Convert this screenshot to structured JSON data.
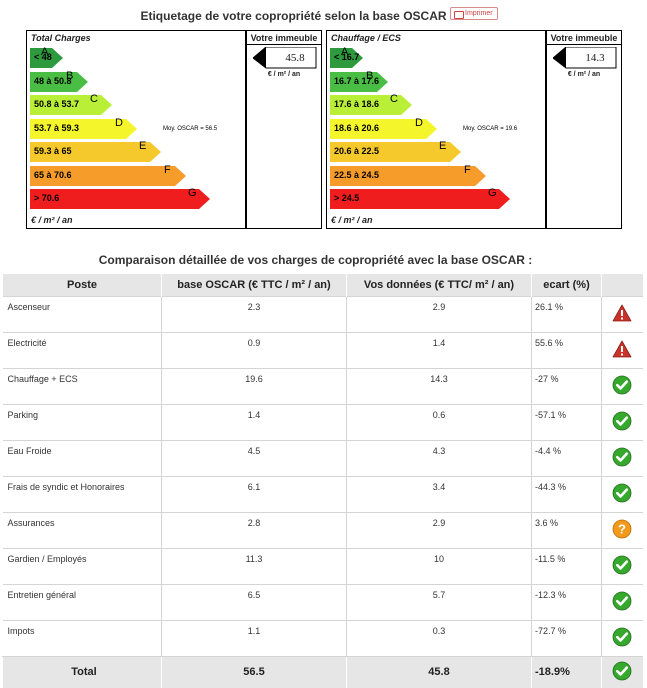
{
  "header": {
    "title": "Etiquetage de votre copropriété selon la base OSCAR",
    "print_label": "Imprimer"
  },
  "total_panel": {
    "title": "Total Charges",
    "unit": "€ / m² / an",
    "moy_label": "Moy. OSCAR = 56.5",
    "bars": [
      {
        "range": "< 48",
        "letter": "A",
        "color": "#2e9a3e"
      },
      {
        "range": "48 à 50.8",
        "letter": "B",
        "color": "#49bd44"
      },
      {
        "range": "50.8 à 53.7",
        "letter": "C",
        "color": "#b9ef37"
      },
      {
        "range": "53.7 à 59.3",
        "letter": "D",
        "color": "#f4f52b"
      },
      {
        "range": "59.3 à 65",
        "letter": "E",
        "color": "#f5c92b"
      },
      {
        "range": "65 à 70.6",
        "letter": "F",
        "color": "#f59c2b"
      },
      {
        "range": "> 70.6",
        "letter": "G",
        "color": "#ef1d1d"
      }
    ],
    "building_title": "Votre immeuble",
    "building_value": "45.8",
    "building_unit": "€ / m² / an"
  },
  "heating_panel": {
    "title": "Chauffage / ECS",
    "unit": "€ / m² / an",
    "moy_label": "Moy. OSCAR = 19.6",
    "bars": [
      {
        "range": "< 16.7",
        "letter": "A",
        "color": "#2e9a3e"
      },
      {
        "range": "16.7 à 17.6",
        "letter": "B",
        "color": "#49bd44"
      },
      {
        "range": "17.6 à 18.6",
        "letter": "C",
        "color": "#b9ef37"
      },
      {
        "range": "18.6 à 20.6",
        "letter": "D",
        "color": "#f4f52b"
      },
      {
        "range": "20.6 à 22.5",
        "letter": "E",
        "color": "#f5c92b"
      },
      {
        "range": "22.5 à 24.5",
        "letter": "F",
        "color": "#f59c2b"
      },
      {
        "range": "> 24.5",
        "letter": "G",
        "color": "#ef1d1d"
      }
    ],
    "building_title": "Votre immeuble",
    "building_value": "14.3",
    "building_unit": "€ / m² / an"
  },
  "comparison": {
    "title": "Comparaison détaillée de vos charges de copropriété avec la base OSCAR :",
    "columns": [
      "Poste",
      "base OSCAR (€ TTC / m² / an)",
      "Vos données (€ TTC/ m² / an)",
      "ecart (%)",
      ""
    ],
    "rows": [
      {
        "poste": "Ascenseur",
        "oscar": "2.3",
        "vos": "2.9",
        "ecart": "26.1 %",
        "status": "warning-icon"
      },
      {
        "poste": "Electricité",
        "oscar": "0.9",
        "vos": "1.4",
        "ecart": "55.6 %",
        "status": "warning-icon"
      },
      {
        "poste": "Chauffage + ECS",
        "oscar": "19.6",
        "vos": "14.3",
        "ecart": "-27 %",
        "status": "check-icon"
      },
      {
        "poste": "Parking",
        "oscar": "1.4",
        "vos": "0.6",
        "ecart": "-57.1 %",
        "status": "check-icon"
      },
      {
        "poste": "Eau Froide",
        "oscar": "4.5",
        "vos": "4.3",
        "ecart": "-4.4 %",
        "status": "check-icon"
      },
      {
        "poste": "Frais de syndic et Honoraires",
        "oscar": "6.1",
        "vos": "3.4",
        "ecart": "-44.3 %",
        "status": "check-icon"
      },
      {
        "poste": "Assurances",
        "oscar": "2.8",
        "vos": "2.9",
        "ecart": "3.6 %",
        "status": "question-icon"
      },
      {
        "poste": "Gardien / Employés",
        "oscar": "11.3",
        "vos": "10",
        "ecart": "-11.5 %",
        "status": "check-icon"
      },
      {
        "poste": "Entretien général",
        "oscar": "6.5",
        "vos": "5.7",
        "ecart": "-12.3 %",
        "status": "check-icon"
      },
      {
        "poste": "Impots",
        "oscar": "1.1",
        "vos": "0.3",
        "ecart": "-72.7 %",
        "status": "check-icon"
      }
    ],
    "total": {
      "poste": "Total",
      "oscar": "56.5",
      "vos": "45.8",
      "ecart": "-18.9%",
      "status": "check-icon"
    }
  }
}
